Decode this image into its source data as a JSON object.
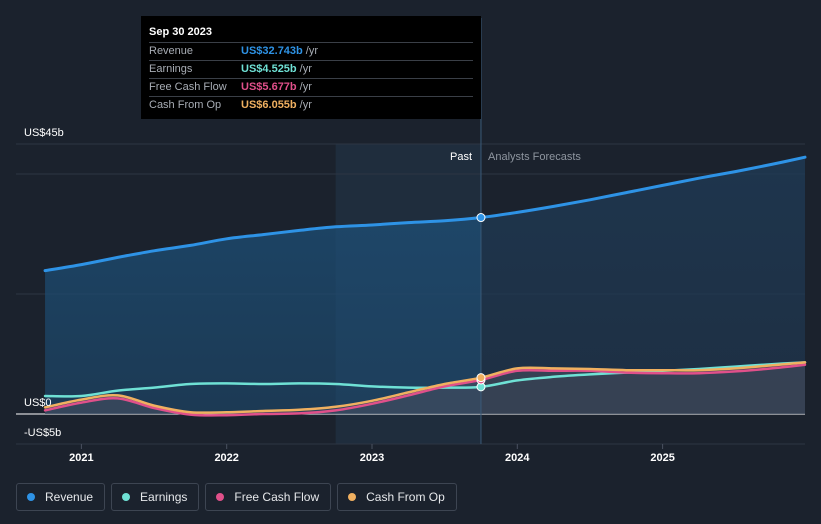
{
  "tooltip": {
    "date": "Sep 30 2023",
    "unit": "/yr",
    "rows": [
      {
        "label": "Revenue",
        "value": "US$32.743b",
        "color": "#2e93e6"
      },
      {
        "label": "Earnings",
        "value": "US$4.525b",
        "color": "#6fe1d5"
      },
      {
        "label": "Free Cash Flow",
        "value": "US$5.677b",
        "color": "#e0508a"
      },
      {
        "label": "Cash From Op",
        "value": "US$6.055b",
        "color": "#f0b060"
      }
    ]
  },
  "labels": {
    "past": "Past",
    "forecast": "Analysts Forecasts"
  },
  "chart_data": {
    "type": "line",
    "y_tick_labels": [
      "US$45b",
      "US$0",
      "-US$5b"
    ],
    "x_tick_labels": [
      "2021",
      "2022",
      "2023",
      "2024",
      "2025"
    ],
    "ylim": [
      -5,
      45
    ],
    "xlim": [
      2020.55,
      2025.98
    ],
    "past_end": 2023.75,
    "highlight_start": 2022.75,
    "series": [
      {
        "name": "Revenue",
        "color": "#2e93e6",
        "x": [
          2020.75,
          2021.0,
          2021.25,
          2021.5,
          2021.75,
          2022.0,
          2022.25,
          2022.5,
          2022.75,
          2023.0,
          2023.25,
          2023.5,
          2023.75,
          2024.0,
          2024.25,
          2024.5,
          2024.75,
          2025.0,
          2025.25,
          2025.5,
          2025.75,
          2026.0
        ],
        "y": [
          23.9,
          24.9,
          26.1,
          27.2,
          28.1,
          29.2,
          29.9,
          30.6,
          31.2,
          31.5,
          31.9,
          32.2,
          32.743,
          33.6,
          34.6,
          35.7,
          36.9,
          38.1,
          39.3,
          40.4,
          41.6,
          42.8
        ]
      },
      {
        "name": "Earnings",
        "color": "#6fe1d5",
        "x": [
          2020.75,
          2021.0,
          2021.25,
          2021.5,
          2021.75,
          2022.0,
          2022.25,
          2022.5,
          2022.75,
          2023.0,
          2023.25,
          2023.5,
          2023.75,
          2024.0,
          2024.25,
          2024.5,
          2024.75,
          2025.0,
          2025.25,
          2025.5,
          2025.75,
          2026.0
        ],
        "y": [
          3.0,
          3.0,
          3.9,
          4.4,
          5.0,
          5.1,
          5.0,
          5.1,
          5.0,
          4.6,
          4.4,
          4.4,
          4.525,
          5.6,
          6.2,
          6.6,
          6.9,
          7.2,
          7.5,
          7.9,
          8.3,
          8.6
        ]
      },
      {
        "name": "Free Cash Flow",
        "color": "#e0508a",
        "x": [
          2020.75,
          2021.0,
          2021.25,
          2021.5,
          2021.75,
          2022.0,
          2022.25,
          2022.5,
          2022.75,
          2023.0,
          2023.25,
          2023.5,
          2023.75,
          2024.0,
          2024.25,
          2024.5,
          2024.75,
          2025.0,
          2025.25,
          2025.5,
          2025.75,
          2026.0
        ],
        "y": [
          0.6,
          1.9,
          2.6,
          1.0,
          -0.1,
          -0.2,
          0.0,
          0.1,
          0.6,
          1.7,
          3.1,
          4.6,
          5.677,
          7.2,
          7.2,
          7.2,
          6.9,
          6.8,
          6.8,
          7.1,
          7.6,
          8.2
        ]
      },
      {
        "name": "Cash From Op",
        "color": "#f0b060",
        "x": [
          2020.75,
          2021.0,
          2021.25,
          2021.5,
          2021.75,
          2022.0,
          2022.25,
          2022.5,
          2022.75,
          2023.0,
          2023.25,
          2023.5,
          2023.75,
          2024.0,
          2024.25,
          2024.5,
          2024.75,
          2025.0,
          2025.25,
          2025.5,
          2025.75,
          2026.0
        ],
        "y": [
          1.1,
          2.4,
          3.1,
          1.4,
          0.3,
          0.3,
          0.5,
          0.7,
          1.2,
          2.2,
          3.6,
          5.0,
          6.055,
          7.6,
          7.6,
          7.5,
          7.3,
          7.3,
          7.3,
          7.6,
          8.1,
          8.6
        ]
      }
    ]
  },
  "legend": [
    {
      "label": "Revenue",
      "color": "#2e93e6"
    },
    {
      "label": "Earnings",
      "color": "#6fe1d5"
    },
    {
      "label": "Free Cash Flow",
      "color": "#e0508a"
    },
    {
      "label": "Cash From Op",
      "color": "#f0b060"
    }
  ]
}
